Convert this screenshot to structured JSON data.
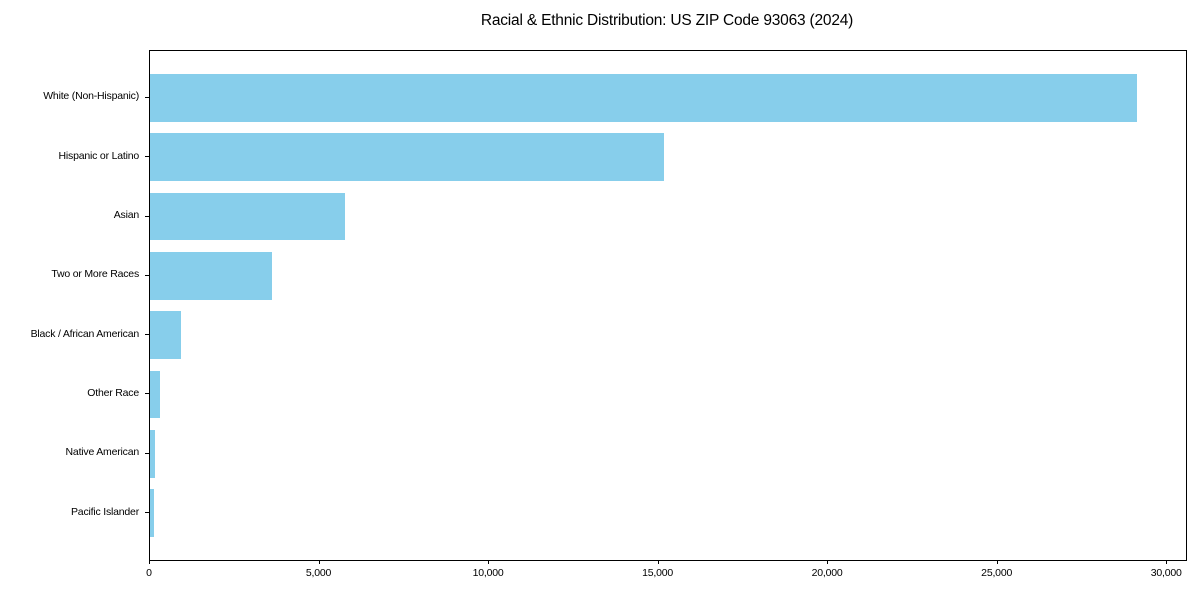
{
  "figure": {
    "background_color": "#ffffff",
    "axis_color": "#000000",
    "text_color": "#000000"
  },
  "chart_data": {
    "type": "bar",
    "orientation": "horizontal",
    "title": "Racial & Ethnic Distribution: US ZIP Code 93063 (2024)",
    "categories": [
      "White (Non-Hispanic)",
      "Hispanic or Latino",
      "Asian",
      "Two or More Races",
      "Black / African American",
      "Other Race",
      "Native American",
      "Pacific Islander"
    ],
    "values": [
      29100,
      15150,
      5750,
      3600,
      910,
      300,
      140,
      110
    ],
    "bar_color": "#87CEEB",
    "xlabel": "",
    "ylabel": "",
    "xlim": [
      0,
      30555
    ],
    "x_ticks": [
      0,
      5000,
      10000,
      15000,
      20000,
      25000,
      30000
    ],
    "x_tick_labels": [
      "0",
      "5,000",
      "10,000",
      "15,000",
      "20,000",
      "25,000",
      "30,000"
    ],
    "grid": false,
    "legend": false
  }
}
